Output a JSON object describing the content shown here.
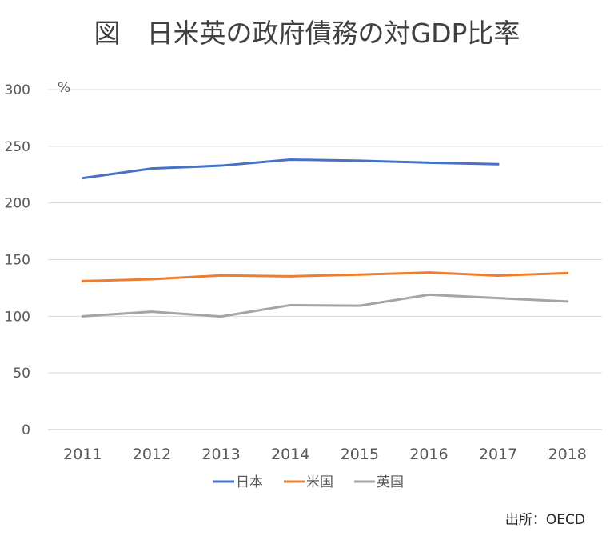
{
  "chart_data": {
    "type": "line",
    "title": "図　日米英の政府債務の対GDP比率",
    "unit_label": "%",
    "categories": [
      "2011",
      "2012",
      "2013",
      "2014",
      "2015",
      "2016",
      "2017",
      "2018"
    ],
    "y_ticks": [
      "0",
      "50",
      "100",
      "150",
      "200",
      "250",
      "300"
    ],
    "ylim": [
      0,
      300
    ],
    "grid": true,
    "legend_position": "bottom",
    "series": [
      {
        "name": "日本",
        "color": "#4472c4",
        "values": [
          221.9,
          230.4,
          232.9,
          238.2,
          237.3,
          235.5,
          234.2,
          null
        ]
      },
      {
        "name": "米国",
        "color": "#ed7d31",
        "values": [
          131.0,
          132.7,
          136.1,
          135.3,
          136.8,
          138.6,
          135.9,
          138.1
        ]
      },
      {
        "name": "英国",
        "color": "#a5a5a5",
        "values": [
          100.0,
          104.0,
          99.8,
          109.8,
          109.3,
          119.0,
          116.0,
          113.0
        ]
      }
    ],
    "source": "出所：OECD"
  }
}
